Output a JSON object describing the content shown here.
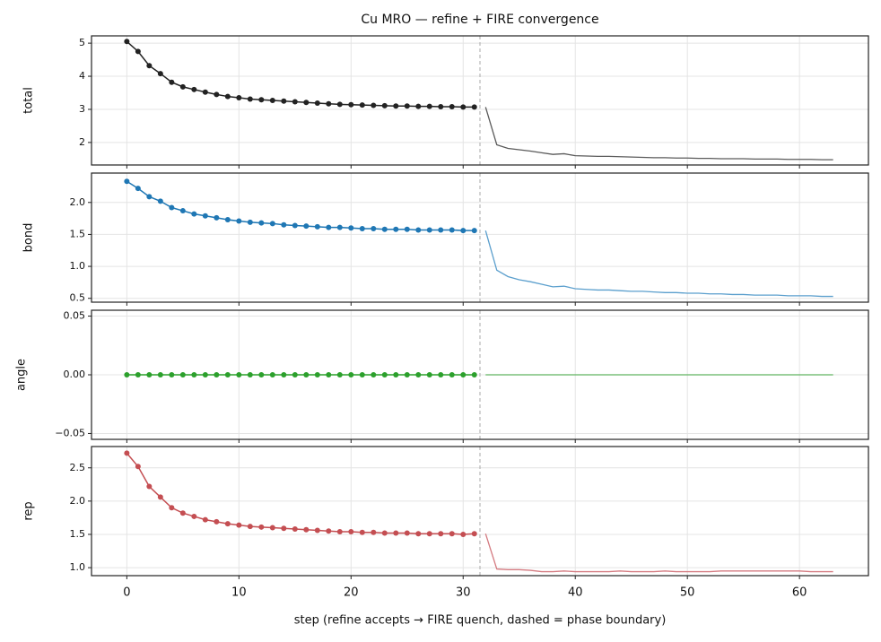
{
  "chart_data": [
    {
      "type": "line",
      "title": "Cu MRO — refine + FIRE convergence",
      "ylabel": "total",
      "xlim": [
        -3.15,
        66.15
      ],
      "xticks": [
        0,
        10,
        20,
        30,
        40,
        50,
        60
      ],
      "ylim": [
        1.32,
        5.22
      ],
      "yticks": [
        2,
        3,
        4,
        5
      ],
      "grid": true,
      "phase_boundary": 31.5,
      "series": [
        {
          "color": "#222222",
          "marker": true,
          "x": [
            0,
            1,
            2,
            3,
            4,
            5,
            6,
            7,
            8,
            9,
            10,
            11,
            12,
            13,
            14,
            15,
            16,
            17,
            18,
            19,
            20,
            21,
            22,
            23,
            24,
            25,
            26,
            27,
            28,
            29,
            30,
            31
          ],
          "values": [
            5.05,
            4.75,
            4.32,
            4.08,
            3.82,
            3.68,
            3.6,
            3.52,
            3.45,
            3.39,
            3.35,
            3.31,
            3.29,
            3.27,
            3.25,
            3.23,
            3.21,
            3.19,
            3.17,
            3.15,
            3.14,
            3.13,
            3.12,
            3.11,
            3.1,
            3.1,
            3.09,
            3.09,
            3.08,
            3.08,
            3.07,
            3.07
          ]
        },
        {
          "color": "#5a5a5a",
          "marker": false,
          "x": [
            32,
            33,
            34,
            35,
            36,
            37,
            38,
            39,
            40,
            41,
            42,
            43,
            44,
            45,
            46,
            47,
            48,
            49,
            50,
            51,
            52,
            53,
            54,
            55,
            56,
            57,
            58,
            59,
            60,
            61,
            62,
            63
          ],
          "values": [
            3.07,
            1.93,
            1.82,
            1.78,
            1.74,
            1.69,
            1.64,
            1.66,
            1.6,
            1.59,
            1.58,
            1.58,
            1.57,
            1.56,
            1.55,
            1.54,
            1.54,
            1.53,
            1.53,
            1.52,
            1.52,
            1.51,
            1.51,
            1.51,
            1.5,
            1.5,
            1.5,
            1.49,
            1.49,
            1.49,
            1.48,
            1.48
          ]
        }
      ]
    },
    {
      "type": "line",
      "ylabel": "bond",
      "xlim": [
        -3.15,
        66.15
      ],
      "xticks": [
        0,
        10,
        20,
        30,
        40,
        50,
        60
      ],
      "ylim": [
        0.44,
        2.46
      ],
      "yticks": [
        0.5,
        {
          "value": 1,
          "label": "1.0"
        },
        1.5,
        {
          "value": 2,
          "label": "2.0"
        }
      ],
      "grid": true,
      "phase_boundary": 31.5,
      "series": [
        {
          "color": "#1f77b4",
          "marker": true,
          "x": [
            0,
            1,
            2,
            3,
            4,
            5,
            6,
            7,
            8,
            9,
            10,
            11,
            12,
            13,
            14,
            15,
            16,
            17,
            18,
            19,
            20,
            21,
            22,
            23,
            24,
            25,
            26,
            27,
            28,
            29,
            30,
            31
          ],
          "values": [
            2.33,
            2.22,
            2.09,
            2.02,
            1.92,
            1.87,
            1.82,
            1.79,
            1.76,
            1.73,
            1.71,
            1.69,
            1.68,
            1.67,
            1.65,
            1.64,
            1.63,
            1.62,
            1.61,
            1.61,
            1.6,
            1.59,
            1.59,
            1.58,
            1.58,
            1.58,
            1.57,
            1.57,
            1.57,
            1.57,
            1.56,
            1.56
          ]
        },
        {
          "color": "#5b9fcd",
          "marker": false,
          "x": [
            32,
            33,
            34,
            35,
            36,
            37,
            38,
            39,
            40,
            41,
            42,
            43,
            44,
            45,
            46,
            47,
            48,
            49,
            50,
            51,
            52,
            53,
            54,
            55,
            56,
            57,
            58,
            59,
            60,
            61,
            62,
            63
          ],
          "values": [
            1.56,
            0.94,
            0.84,
            0.79,
            0.76,
            0.72,
            0.68,
            0.69,
            0.65,
            0.64,
            0.63,
            0.63,
            0.62,
            0.61,
            0.61,
            0.6,
            0.59,
            0.59,
            0.58,
            0.58,
            0.57,
            0.57,
            0.56,
            0.56,
            0.55,
            0.55,
            0.55,
            0.54,
            0.54,
            0.54,
            0.53,
            0.53
          ]
        }
      ]
    },
    {
      "type": "line",
      "ylabel": "angle",
      "xlim": [
        -3.15,
        66.15
      ],
      "xticks": [
        0,
        10,
        20,
        30,
        40,
        50,
        60
      ],
      "ylim": [
        -0.055,
        0.055
      ],
      "yticks": [
        {
          "value": -0.05,
          "label": "−0.05"
        },
        {
          "value": 0,
          "label": "0.00"
        },
        {
          "value": 0.05,
          "label": "0.05"
        }
      ],
      "grid": true,
      "phase_boundary": 31.5,
      "series": [
        {
          "color": "#2ca02c",
          "marker": true,
          "x": [
            0,
            1,
            2,
            3,
            4,
            5,
            6,
            7,
            8,
            9,
            10,
            11,
            12,
            13,
            14,
            15,
            16,
            17,
            18,
            19,
            20,
            21,
            22,
            23,
            24,
            25,
            26,
            27,
            28,
            29,
            30,
            31
          ],
          "values": [
            0,
            0,
            0,
            0,
            0,
            0,
            0,
            0,
            0,
            0,
            0,
            0,
            0,
            0,
            0,
            0,
            0,
            0,
            0,
            0,
            0,
            0,
            0,
            0,
            0,
            0,
            0,
            0,
            0,
            0,
            0,
            0
          ]
        },
        {
          "color": "#62b462",
          "marker": false,
          "x": [
            32,
            33,
            34,
            35,
            36,
            37,
            38,
            39,
            40,
            41,
            42,
            43,
            44,
            45,
            46,
            47,
            48,
            49,
            50,
            51,
            52,
            53,
            54,
            55,
            56,
            57,
            58,
            59,
            60,
            61,
            62,
            63
          ],
          "values": [
            0,
            0,
            0,
            0,
            0,
            0,
            0,
            0,
            0,
            0,
            0,
            0,
            0,
            0,
            0,
            0,
            0,
            0,
            0,
            0,
            0,
            0,
            0,
            0,
            0,
            0,
            0,
            0,
            0,
            0,
            0,
            0
          ]
        }
      ]
    },
    {
      "type": "line",
      "ylabel": "rep",
      "xlabel": "step  (refine accepts → FIRE quench, dashed = phase boundary)",
      "xlim": [
        -3.15,
        66.15
      ],
      "xticks": [
        0,
        10,
        20,
        30,
        40,
        50,
        60
      ],
      "ylim": [
        0.88,
        2.82
      ],
      "yticks": [
        {
          "value": 1,
          "label": "1.0"
        },
        1.5,
        {
          "value": 2,
          "label": "2.0"
        },
        2.5
      ],
      "grid": true,
      "phase_boundary": 31.5,
      "series": [
        {
          "color": "#c44e52",
          "marker": true,
          "x": [
            0,
            1,
            2,
            3,
            4,
            5,
            6,
            7,
            8,
            9,
            10,
            11,
            12,
            13,
            14,
            15,
            16,
            17,
            18,
            19,
            20,
            21,
            22,
            23,
            24,
            25,
            26,
            27,
            28,
            29,
            30,
            31
          ],
          "values": [
            2.72,
            2.52,
            2.22,
            2.06,
            1.9,
            1.82,
            1.77,
            1.72,
            1.69,
            1.66,
            1.64,
            1.62,
            1.61,
            1.6,
            1.59,
            1.58,
            1.57,
            1.56,
            1.55,
            1.54,
            1.54,
            1.53,
            1.53,
            1.52,
            1.52,
            1.52,
            1.51,
            1.51,
            1.51,
            1.51,
            1.5,
            1.51
          ]
        },
        {
          "color": "#d47a80",
          "marker": false,
          "x": [
            32,
            33,
            34,
            35,
            36,
            37,
            38,
            39,
            40,
            41,
            42,
            43,
            44,
            45,
            46,
            47,
            48,
            49,
            50,
            51,
            52,
            53,
            54,
            55,
            56,
            57,
            58,
            59,
            60,
            61,
            62,
            63
          ],
          "values": [
            1.51,
            0.98,
            0.97,
            0.97,
            0.96,
            0.94,
            0.94,
            0.95,
            0.94,
            0.94,
            0.94,
            0.94,
            0.95,
            0.94,
            0.94,
            0.94,
            0.95,
            0.94,
            0.94,
            0.94,
            0.94,
            0.95,
            0.95,
            0.95,
            0.95,
            0.95,
            0.95,
            0.95,
            0.95,
            0.94,
            0.94,
            0.94
          ]
        }
      ]
    }
  ]
}
